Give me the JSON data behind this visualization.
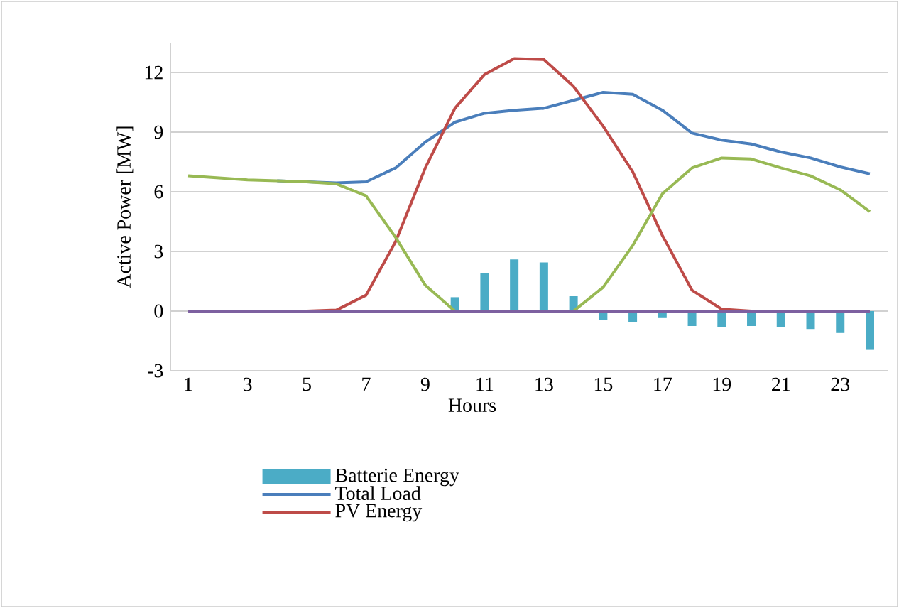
{
  "chart_data": {
    "type": "line",
    "xlabel": "Hours",
    "ylabel": "Active Power [MW]",
    "x": [
      1,
      2,
      3,
      4,
      5,
      6,
      7,
      8,
      9,
      10,
      11,
      12,
      13,
      14,
      15,
      16,
      17,
      18,
      19,
      20,
      21,
      22,
      23,
      24
    ],
    "xlim": [
      0.4,
      24.6
    ],
    "xticks": [
      1,
      3,
      5,
      7,
      9,
      11,
      13,
      15,
      17,
      19,
      21,
      23
    ],
    "ylim": [
      -3,
      13.5
    ],
    "yticks": [
      -3,
      0,
      3,
      6,
      9,
      12
    ],
    "grid": "y",
    "legend": "bottom",
    "series": [
      {
        "name": "Batterie Energy",
        "type": "bar",
        "color": "#4bacc6",
        "values": [
          0,
          0,
          0,
          0,
          0,
          0,
          0,
          0,
          0,
          0.7,
          1.9,
          2.6,
          2.45,
          0.75,
          -0.45,
          -0.55,
          -0.35,
          -0.75,
          -0.8,
          -0.75,
          -0.8,
          -0.9,
          -1.1,
          -1.95
        ]
      },
      {
        "name": "Total Load",
        "color": "#4a7ebb",
        "values": [
          null,
          null,
          null,
          6.55,
          6.5,
          6.45,
          6.5,
          7.2,
          8.5,
          9.5,
          9.95,
          10.1,
          10.2,
          10.6,
          11.0,
          10.9,
          10.1,
          8.95,
          8.6,
          8.4,
          8.0,
          7.7,
          7.25,
          6.9
        ]
      },
      {
        "name": "PV Energy",
        "color": "#be4b48",
        "values": [
          null,
          null,
          null,
          0,
          0,
          0.05,
          0.8,
          3.5,
          7.2,
          10.2,
          11.9,
          12.7,
          12.65,
          11.3,
          9.3,
          7.0,
          3.8,
          1.05,
          0.1,
          0,
          0,
          null,
          null,
          null
        ]
      },
      {
        "color": "#98b954",
        "values": [
          6.8,
          6.7,
          6.6,
          6.55,
          6.5,
          6.4,
          5.8,
          3.7,
          1.3,
          0,
          0,
          0,
          0,
          0,
          1.2,
          3.3,
          5.9,
          7.2,
          7.7,
          7.65,
          7.2,
          6.8,
          6.1,
          5.0
        ]
      },
      {
        "color": "#7d60a0",
        "values": [
          0,
          0,
          0,
          0,
          0,
          0,
          0,
          0,
          0,
          0,
          0,
          0,
          0,
          0,
          0,
          0,
          0,
          0,
          0,
          0,
          0,
          0,
          0,
          0
        ]
      }
    ]
  }
}
